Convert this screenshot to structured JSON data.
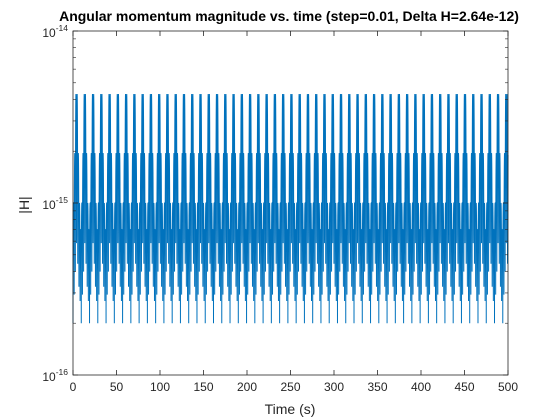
{
  "chart_data": {
    "type": "line",
    "title": "Angular momentum magnitude vs. time (step=0.01, Delta H=2.64e-12)",
    "xlabel": "Time (s)",
    "ylabel": "|H|",
    "xlim": [
      0,
      500
    ],
    "ylim": [
      1e-16,
      1e-14
    ],
    "yscale": "log",
    "x_ticks": [
      0,
      50,
      100,
      150,
      200,
      250,
      300,
      350,
      400,
      450,
      500
    ],
    "y_ticks": [
      {
        "value": 1e-16,
        "base": "10",
        "exp": "-16"
      },
      {
        "value": 1e-15,
        "base": "10",
        "exp": "-15"
      },
      {
        "value": 1e-14,
        "base": "10",
        "exp": "-14"
      }
    ],
    "grid": false,
    "series": [
      {
        "color": "#0072BD",
        "description_values": {
          "baseline": 2e-16,
          "level_values": [
            7e-16,
            1e-15,
            1.95e-15,
            4.3e-15
          ],
          "period_s": 9.5,
          "x_range": [
            0,
            500
          ]
        }
      }
    ]
  }
}
